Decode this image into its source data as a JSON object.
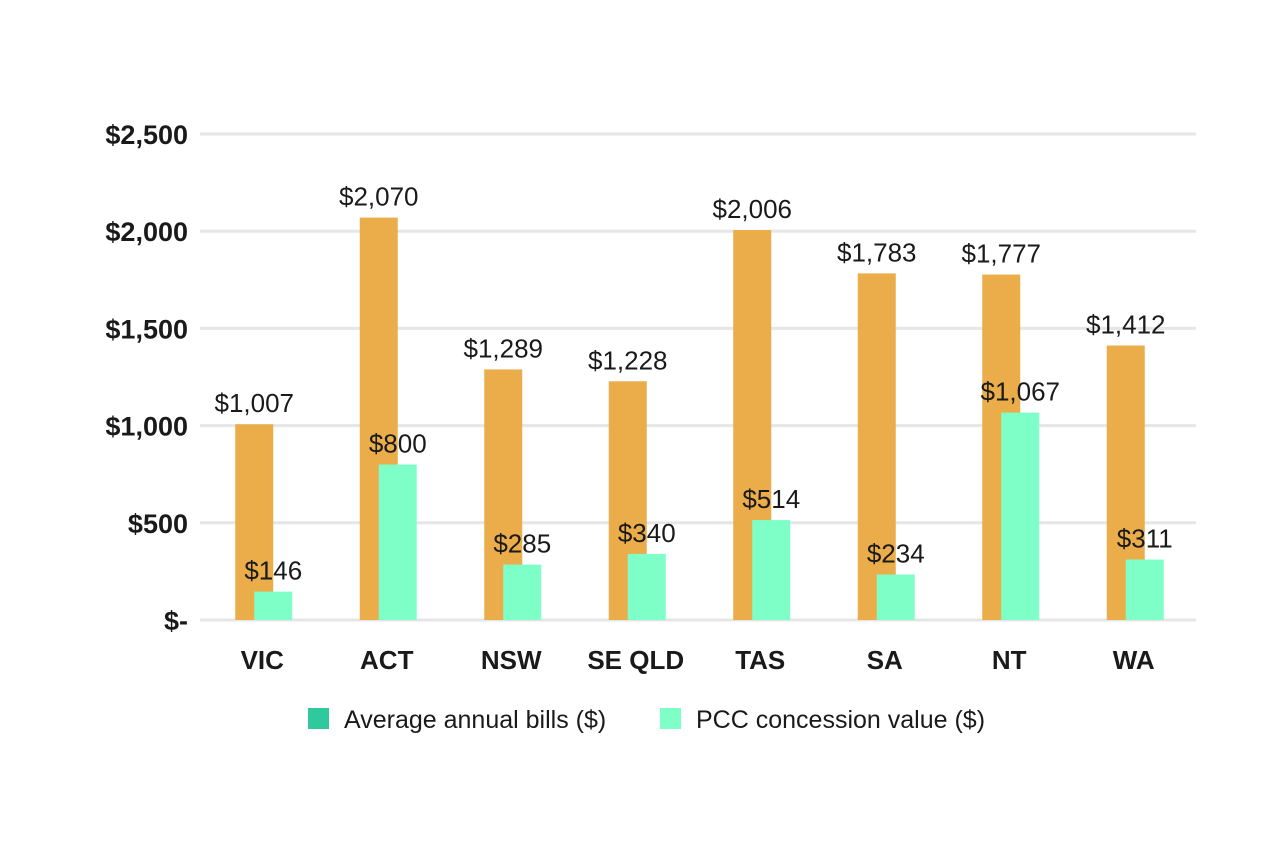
{
  "chart_data": {
    "type": "bar",
    "categories": [
      "VIC",
      "ACT",
      "NSW",
      "SE QLD",
      "TAS",
      "SA",
      "NT",
      "WA"
    ],
    "series": [
      {
        "name": "Average annual bills ($)",
        "values": [
          1007,
          2070,
          1289,
          1228,
          2006,
          1783,
          1777,
          1412
        ],
        "labels": [
          "$1,007",
          "$2,070",
          "$1,289",
          "$1,228",
          "$2,006",
          "$1,783",
          "$1,777",
          "$1,412"
        ],
        "color": "#EBAC4A",
        "legend_color": "#2EC99C"
      },
      {
        "name": "PCC concession value ($)",
        "values": [
          146,
          800,
          285,
          340,
          514,
          234,
          1067,
          311
        ],
        "labels": [
          "$146",
          "$800",
          "$285",
          "$340",
          "$514",
          "$234",
          "$1,067",
          "$311"
        ],
        "color": "#7FFFC8",
        "legend_color": "#7FFFC8"
      }
    ],
    "yticks": [
      {
        "value": 0,
        "label": "$-"
      },
      {
        "value": 500,
        "label": "$500"
      },
      {
        "value": 1000,
        "label": "$1,000"
      },
      {
        "value": 1500,
        "label": "$1,500"
      },
      {
        "value": 2000,
        "label": "$2,000"
      },
      {
        "value": 2500,
        "label": "$2,500"
      }
    ],
    "ylim": [
      0,
      2500
    ],
    "title": "",
    "xlabel": "",
    "ylabel": "",
    "grid": true,
    "legend_position": "bottom",
    "gridline_color": "#E6E6E6"
  }
}
